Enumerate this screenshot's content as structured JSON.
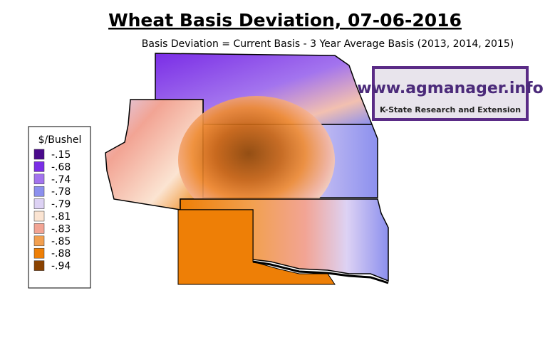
{
  "header": {
    "title": "Wheat Basis Deviation, 07-06-2016",
    "subtitle": "Basis Deviation = Current Basis - 3 Year Average Basis (2013, 2014, 2015)"
  },
  "legend": {
    "title": "$/Bushel",
    "items": [
      {
        "label": "-.15",
        "color": "#4a0a8c"
      },
      {
        "label": "-.68",
        "color": "#7a2de6"
      },
      {
        "label": "-.74",
        "color": "#a374ee"
      },
      {
        "label": "-.78",
        "color": "#8c90ee"
      },
      {
        "label": "-.79",
        "color": "#ddd2f4"
      },
      {
        "label": "-.81",
        "color": "#fbe4d2"
      },
      {
        "label": "-.83",
        "color": "#f2a494"
      },
      {
        "label": "-.85",
        "color": "#f2a050"
      },
      {
        "label": "-.88",
        "color": "#ee7f06"
      },
      {
        "label": "-.94",
        "color": "#8a4200"
      }
    ]
  },
  "logo": {
    "url": "www.agmanager.info",
    "org": "K-State Research and Extension"
  }
}
